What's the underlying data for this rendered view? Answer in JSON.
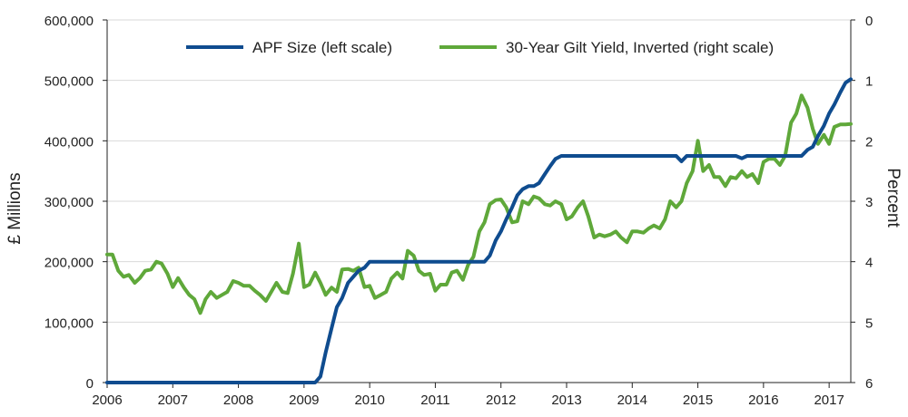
{
  "chart_data": {
    "type": "line",
    "title": "",
    "x_axis": {
      "ticks": [
        "2006",
        "2007",
        "2008",
        "2009",
        "2010",
        "2011",
        "2012",
        "2013",
        "2014",
        "2015",
        "2016",
        "2017"
      ],
      "range": [
        2006.0,
        2017.33
      ]
    },
    "y_left": {
      "label": "£ Millions",
      "range": [
        0,
        600000
      ],
      "ticks": [
        "0",
        "100,000",
        "200,000",
        "300,000",
        "400,000",
        "500,000",
        "600,000"
      ]
    },
    "y_right": {
      "label": "Percent",
      "range": [
        6,
        0
      ],
      "inverted": true,
      "ticks": [
        "6",
        "5",
        "4",
        "3",
        "2",
        "1",
        "0"
      ]
    },
    "grid": true,
    "legend_position": "top",
    "series": [
      {
        "name": "APF Size (left scale)",
        "axis": "left",
        "color": "#0f4c8f",
        "points": [
          [
            2006.0,
            0
          ],
          [
            2009.17,
            0
          ],
          [
            2009.25,
            10000
          ],
          [
            2009.33,
            50000
          ],
          [
            2009.42,
            90000
          ],
          [
            2009.5,
            125000
          ],
          [
            2009.58,
            140000
          ],
          [
            2009.67,
            165000
          ],
          [
            2009.75,
            175000
          ],
          [
            2009.83,
            185000
          ],
          [
            2009.92,
            190000
          ],
          [
            2010.0,
            200000
          ],
          [
            2011.75,
            200000
          ],
          [
            2011.83,
            210000
          ],
          [
            2011.92,
            235000
          ],
          [
            2012.0,
            250000
          ],
          [
            2012.08,
            270000
          ],
          [
            2012.17,
            290000
          ],
          [
            2012.25,
            310000
          ],
          [
            2012.33,
            320000
          ],
          [
            2012.42,
            325000
          ],
          [
            2012.5,
            325000
          ],
          [
            2012.58,
            330000
          ],
          [
            2012.67,
            345000
          ],
          [
            2012.75,
            358000
          ],
          [
            2012.83,
            370000
          ],
          [
            2012.92,
            375000
          ],
          [
            2014.67,
            375000
          ],
          [
            2014.75,
            366000
          ],
          [
            2014.83,
            375000
          ],
          [
            2015.58,
            375000
          ],
          [
            2015.67,
            371000
          ],
          [
            2015.75,
            375000
          ],
          [
            2016.58,
            375000
          ],
          [
            2016.67,
            385000
          ],
          [
            2016.75,
            390000
          ],
          [
            2016.83,
            408000
          ],
          [
            2016.92,
            425000
          ],
          [
            2017.0,
            445000
          ],
          [
            2017.08,
            460000
          ],
          [
            2017.17,
            480000
          ],
          [
            2017.25,
            496000
          ],
          [
            2017.33,
            502000
          ]
        ]
      },
      {
        "name": "30-Year Gilt Yield, Inverted (right scale)",
        "axis": "right",
        "color": "#5fa83a",
        "points": [
          [
            2006.0,
            3.88
          ],
          [
            2006.08,
            3.88
          ],
          [
            2006.17,
            4.15
          ],
          [
            2006.25,
            4.25
          ],
          [
            2006.33,
            4.22
          ],
          [
            2006.42,
            4.35
          ],
          [
            2006.5,
            4.27
          ],
          [
            2006.58,
            4.15
          ],
          [
            2006.67,
            4.13
          ],
          [
            2006.75,
            4.0
          ],
          [
            2006.83,
            4.03
          ],
          [
            2006.92,
            4.2
          ],
          [
            2007.0,
            4.42
          ],
          [
            2007.08,
            4.27
          ],
          [
            2007.17,
            4.43
          ],
          [
            2007.25,
            4.55
          ],
          [
            2007.33,
            4.62
          ],
          [
            2007.42,
            4.85
          ],
          [
            2007.5,
            4.62
          ],
          [
            2007.58,
            4.5
          ],
          [
            2007.67,
            4.6
          ],
          [
            2007.75,
            4.55
          ],
          [
            2007.83,
            4.5
          ],
          [
            2007.92,
            4.32
          ],
          [
            2008.0,
            4.35
          ],
          [
            2008.08,
            4.4
          ],
          [
            2008.17,
            4.4
          ],
          [
            2008.25,
            4.48
          ],
          [
            2008.33,
            4.55
          ],
          [
            2008.42,
            4.65
          ],
          [
            2008.5,
            4.5
          ],
          [
            2008.58,
            4.35
          ],
          [
            2008.67,
            4.5
          ],
          [
            2008.75,
            4.52
          ],
          [
            2008.83,
            4.2
          ],
          [
            2008.92,
            3.7
          ],
          [
            2009.0,
            4.42
          ],
          [
            2009.08,
            4.38
          ],
          [
            2009.17,
            4.18
          ],
          [
            2009.25,
            4.35
          ],
          [
            2009.33,
            4.55
          ],
          [
            2009.42,
            4.43
          ],
          [
            2009.5,
            4.5
          ],
          [
            2009.58,
            4.13
          ],
          [
            2009.67,
            4.12
          ],
          [
            2009.75,
            4.15
          ],
          [
            2009.83,
            4.1
          ],
          [
            2009.92,
            4.42
          ],
          [
            2010.0,
            4.4
          ],
          [
            2010.08,
            4.6
          ],
          [
            2010.17,
            4.55
          ],
          [
            2010.25,
            4.5
          ],
          [
            2010.33,
            4.28
          ],
          [
            2010.42,
            4.18
          ],
          [
            2010.5,
            4.28
          ],
          [
            2010.58,
            3.82
          ],
          [
            2010.67,
            3.9
          ],
          [
            2010.75,
            4.15
          ],
          [
            2010.83,
            4.22
          ],
          [
            2010.92,
            4.2
          ],
          [
            2011.0,
            4.48
          ],
          [
            2011.08,
            4.38
          ],
          [
            2011.17,
            4.38
          ],
          [
            2011.25,
            4.18
          ],
          [
            2011.33,
            4.15
          ],
          [
            2011.42,
            4.3
          ],
          [
            2011.5,
            4.05
          ],
          [
            2011.58,
            3.92
          ],
          [
            2011.67,
            3.5
          ],
          [
            2011.75,
            3.35
          ],
          [
            2011.83,
            3.05
          ],
          [
            2011.92,
            2.98
          ],
          [
            2012.0,
            2.97
          ],
          [
            2012.08,
            3.1
          ],
          [
            2012.17,
            3.35
          ],
          [
            2012.25,
            3.33
          ],
          [
            2012.33,
            3.0
          ],
          [
            2012.42,
            3.05
          ],
          [
            2012.5,
            2.92
          ],
          [
            2012.58,
            2.95
          ],
          [
            2012.67,
            3.05
          ],
          [
            2012.75,
            3.07
          ],
          [
            2012.83,
            3.0
          ],
          [
            2012.92,
            3.05
          ],
          [
            2013.0,
            3.3
          ],
          [
            2013.08,
            3.25
          ],
          [
            2013.17,
            3.1
          ],
          [
            2013.25,
            3.0
          ],
          [
            2013.33,
            3.25
          ],
          [
            2013.42,
            3.6
          ],
          [
            2013.5,
            3.55
          ],
          [
            2013.58,
            3.58
          ],
          [
            2013.67,
            3.55
          ],
          [
            2013.75,
            3.5
          ],
          [
            2013.83,
            3.6
          ],
          [
            2013.92,
            3.68
          ],
          [
            2014.0,
            3.5
          ],
          [
            2014.08,
            3.5
          ],
          [
            2014.17,
            3.52
          ],
          [
            2014.25,
            3.45
          ],
          [
            2014.33,
            3.4
          ],
          [
            2014.42,
            3.45
          ],
          [
            2014.5,
            3.3
          ],
          [
            2014.58,
            3.0
          ],
          [
            2014.67,
            3.1
          ],
          [
            2014.75,
            3.0
          ],
          [
            2014.83,
            2.7
          ],
          [
            2014.92,
            2.5
          ],
          [
            2015.0,
            2.0
          ],
          [
            2015.08,
            2.5
          ],
          [
            2015.17,
            2.4
          ],
          [
            2015.25,
            2.6
          ],
          [
            2015.33,
            2.6
          ],
          [
            2015.42,
            2.75
          ],
          [
            2015.5,
            2.6
          ],
          [
            2015.58,
            2.62
          ],
          [
            2015.67,
            2.5
          ],
          [
            2015.75,
            2.6
          ],
          [
            2015.83,
            2.55
          ],
          [
            2015.92,
            2.7
          ],
          [
            2016.0,
            2.35
          ],
          [
            2016.08,
            2.3
          ],
          [
            2016.17,
            2.3
          ],
          [
            2016.25,
            2.4
          ],
          [
            2016.33,
            2.25
          ],
          [
            2016.42,
            1.7
          ],
          [
            2016.5,
            1.55
          ],
          [
            2016.58,
            1.25
          ],
          [
            2016.67,
            1.45
          ],
          [
            2016.75,
            1.8
          ],
          [
            2016.83,
            2.05
          ],
          [
            2016.92,
            1.9
          ],
          [
            2017.0,
            2.05
          ],
          [
            2017.08,
            1.77
          ],
          [
            2017.17,
            1.73
          ],
          [
            2017.25,
            1.73
          ],
          [
            2017.33,
            1.72
          ]
        ]
      }
    ]
  }
}
